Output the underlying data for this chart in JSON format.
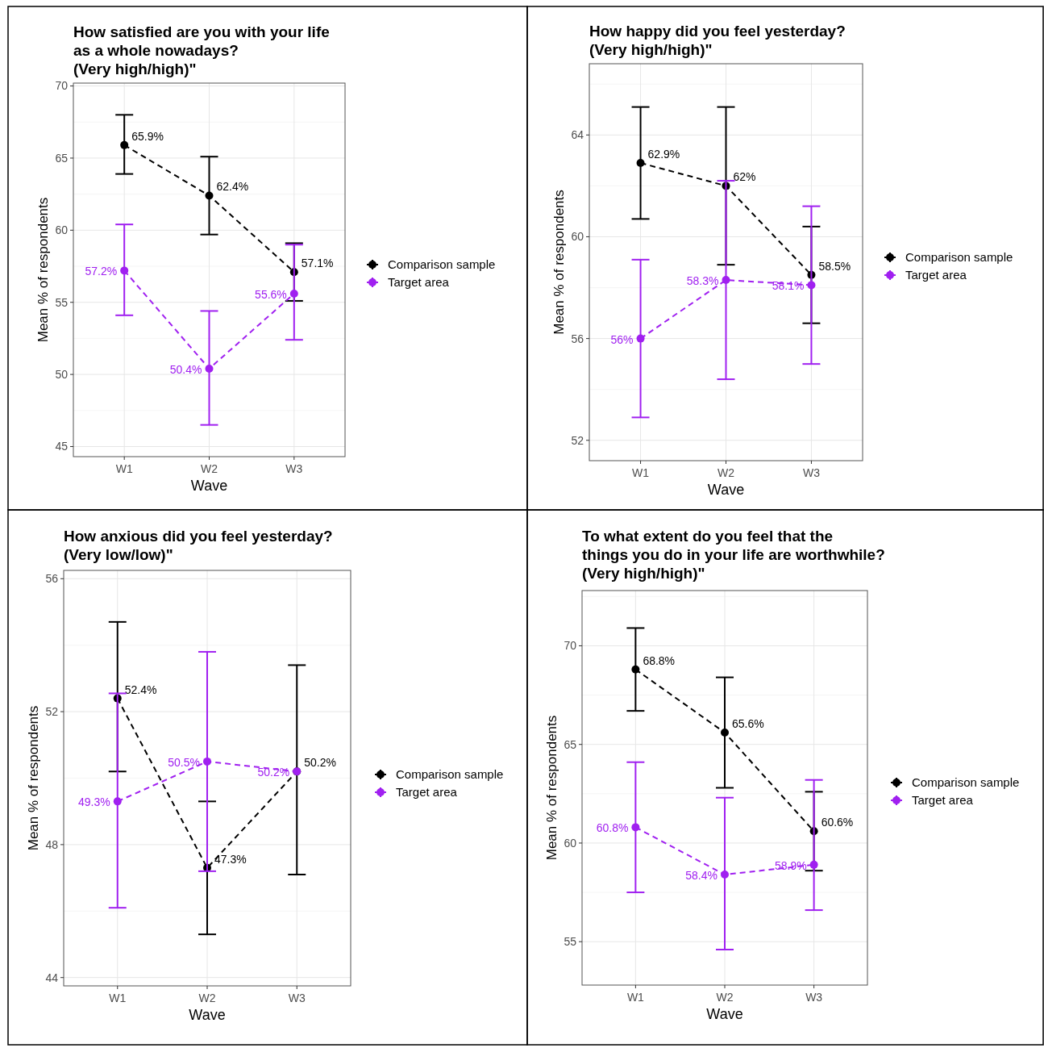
{
  "chart_data": [
    {
      "type": "line",
      "title": "How satisfied are you with your life\nas a whole nowadays?\n(Very high/high)\"",
      "xlabel": "Wave",
      "ylabel": "Mean % of respondents",
      "categories": [
        "W1",
        "W2",
        "W3"
      ],
      "ylim": [
        44.3,
        70.2
      ],
      "yticks": [
        45,
        50,
        55,
        60,
        65,
        70
      ],
      "grid": true,
      "legend": "right",
      "marker": "circle",
      "line_style": "dashed",
      "series": [
        {
          "name": "Comparison sample",
          "color": "#000000",
          "values": [
            65.9,
            62.4,
            57.1
          ],
          "value_labels": [
            "65.9%",
            "62.4%",
            "57.1%"
          ],
          "errors": [
            [
              63.9,
              68.0
            ],
            [
              59.7,
              65.1
            ],
            [
              55.1,
              59.1
            ]
          ]
        },
        {
          "name": "Target area",
          "color": "#a020f0",
          "values": [
            57.2,
            50.4,
            55.6
          ],
          "value_labels": [
            "57.2%",
            "50.4%",
            "55.6%"
          ],
          "errors": [
            [
              54.1,
              60.4
            ],
            [
              46.5,
              54.4
            ],
            [
              52.4,
              59.0
            ]
          ]
        }
      ]
    },
    {
      "type": "line",
      "title": "How happy did you feel yesterday?\n(Very high/high)\"",
      "xlabel": "Wave",
      "ylabel": "Mean % of respondents",
      "categories": [
        "W1",
        "W2",
        "W3"
      ],
      "ylim": [
        51.2,
        66.8
      ],
      "yticks": [
        52,
        56,
        60,
        64
      ],
      "grid": true,
      "legend": "right",
      "marker": "circle",
      "line_style": "dashed",
      "series": [
        {
          "name": "Comparison sample",
          "color": "#000000",
          "values": [
            62.9,
            62,
            58.5
          ],
          "value_labels": [
            "62.9%",
            "62%",
            "58.5%"
          ],
          "errors": [
            [
              60.7,
              65.1
            ],
            [
              58.9,
              65.1
            ],
            [
              56.6,
              60.4
            ]
          ]
        },
        {
          "name": "Target area",
          "color": "#a020f0",
          "values": [
            56,
            58.3,
            58.1
          ],
          "value_labels": [
            "56%",
            "58.3%",
            "58.1%"
          ],
          "errors": [
            [
              52.9,
              59.1
            ],
            [
              54.4,
              62.2
            ],
            [
              55.0,
              61.2
            ]
          ]
        }
      ]
    },
    {
      "type": "line",
      "title": "How anxious did you feel yesterday?\n(Very low/low)\"",
      "xlabel": "Wave",
      "ylabel": "Mean % of respondents",
      "categories": [
        "W1",
        "W2",
        "W3"
      ],
      "ylim": [
        43.75,
        56.25
      ],
      "yticks": [
        44,
        48,
        52,
        56
      ],
      "grid": true,
      "legend": "right",
      "marker": "circle",
      "line_style": "dashed",
      "series": [
        {
          "name": "Comparison sample",
          "color": "#000000",
          "values": [
            52.4,
            47.3,
            50.2
          ],
          "value_labels": [
            "52.4%",
            "47.3%",
            "50.2%"
          ],
          "errors": [
            [
              50.2,
              54.7
            ],
            [
              45.3,
              49.3
            ],
            [
              47.1,
              53.4
            ]
          ]
        },
        {
          "name": "Target area",
          "color": "#a020f0",
          "values": [
            49.3,
            50.5,
            50.2
          ],
          "value_labels": [
            "49.3%",
            "50.5%",
            "50.2%"
          ],
          "errors": [
            [
              46.1,
              52.55
            ],
            [
              47.2,
              53.8
            ],
            null
          ]
        }
      ]
    },
    {
      "type": "line",
      "title": "To what extent do you feel that the\nthings you do in your life are worthwhile?\n(Very high/high)\"",
      "xlabel": "Wave",
      "ylabel": "Mean % of respondents",
      "categories": [
        "W1",
        "W2",
        "W3"
      ],
      "ylim": [
        52.8,
        72.8
      ],
      "yticks": [
        55,
        60,
        65,
        70
      ],
      "grid": true,
      "legend": "right",
      "marker": "circle",
      "line_style": "dashed",
      "series": [
        {
          "name": "Comparison sample",
          "color": "#000000",
          "values": [
            68.8,
            65.6,
            60.6
          ],
          "value_labels": [
            "68.8%",
            "65.6%",
            "60.6%"
          ],
          "errors": [
            [
              66.7,
              70.9
            ],
            [
              62.8,
              68.4
            ],
            [
              58.6,
              62.6
            ]
          ]
        },
        {
          "name": "Target area",
          "color": "#a020f0",
          "values": [
            60.8,
            58.4,
            58.9
          ],
          "value_labels": [
            "60.8%",
            "58.4%",
            "58.9%"
          ],
          "errors": [
            [
              57.5,
              64.1
            ],
            [
              54.6,
              62.3
            ],
            [
              56.6,
              63.2
            ]
          ]
        }
      ]
    }
  ]
}
